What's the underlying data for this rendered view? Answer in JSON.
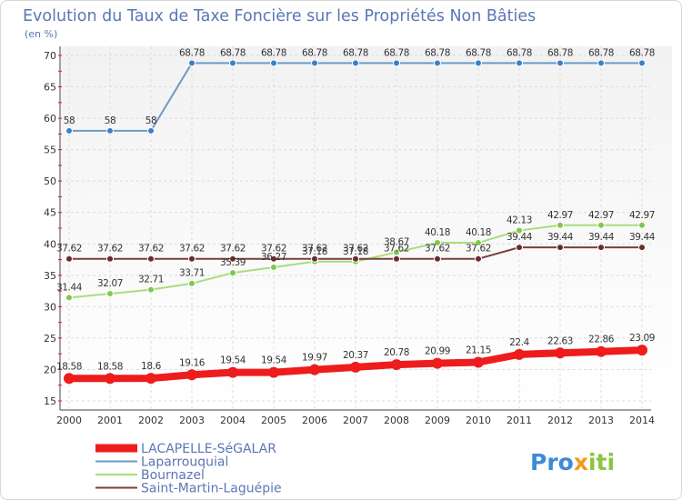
{
  "chart_data": {
    "type": "line",
    "title": "Evolution du Taux de Taxe Foncière sur les Propriétés Non Bâties",
    "subtitle": "(en %)",
    "xlabel": "",
    "ylabel": "(en %)",
    "ylim": [
      15,
      70
    ],
    "yticks": [
      "15",
      "20",
      "25",
      "30",
      "35",
      "40",
      "45",
      "50",
      "55",
      "60",
      "65",
      "70"
    ],
    "grid": true,
    "legend_position": "bottom-left",
    "categories": [
      "2000",
      "2001",
      "2002",
      "2003",
      "2004",
      "2005",
      "2006",
      "2007",
      "2008",
      "2009",
      "2010",
      "2011",
      "2012",
      "2013",
      "2014"
    ],
    "series": [
      {
        "name": "Laparrouquial",
        "color": "#6d9ac8",
        "marker_color": "#3d7fc6",
        "values": [
          58,
          58,
          58,
          68.78,
          68.78,
          68.78,
          68.78,
          68.78,
          68.78,
          68.78,
          68.78,
          68.78,
          68.78,
          68.78,
          68.78
        ],
        "labels": [
          "58",
          "58",
          "58",
          "68.78",
          "68.78",
          "68.78",
          "68.78",
          "68.78",
          "68.78",
          "68.78",
          "68.78",
          "68.78",
          "68.78",
          "68.78",
          "68.78"
        ]
      },
      {
        "name": "Bournazel",
        "color": "#a8dd7c",
        "marker_color": "#7ec84a",
        "values": [
          31.44,
          32.07,
          32.71,
          33.71,
          35.39,
          36.27,
          37.18,
          37.18,
          38.67,
          40.18,
          40.18,
          42.13,
          42.97,
          42.97,
          42.97
        ],
        "labels": [
          "31.44",
          "32.07",
          "32.71",
          "33.71",
          "35.39",
          "36.27",
          "37.18",
          "37.18",
          "38.67",
          "40.18",
          "40.18",
          "42.13",
          "42.97",
          "42.97",
          "42.97"
        ]
      },
      {
        "name": "Saint-Martin-Laguépie",
        "color": "#7a3e3e",
        "marker_color": "#6b2b2b",
        "values": [
          37.62,
          37.62,
          37.62,
          37.62,
          37.62,
          37.62,
          37.62,
          37.62,
          37.62,
          37.62,
          37.62,
          39.44,
          39.44,
          39.44,
          39.44
        ],
        "labels": [
          "37.62",
          "37.62",
          "37.62",
          "37.62",
          "37.62",
          "37.62",
          "37.62",
          "37.62",
          "37.62",
          "37.62",
          "37.62",
          "39.44",
          "39.44",
          "39.44",
          "39.44"
        ]
      },
      {
        "name": "LACAPELLE-SéGALAR",
        "color": "#ee1c1c",
        "marker_color": "#ee1c1c",
        "values": [
          18.58,
          18.58,
          18.6,
          19.16,
          19.54,
          19.54,
          19.97,
          20.37,
          20.78,
          20.99,
          21.15,
          22.4,
          22.63,
          22.86,
          23.09
        ],
        "labels": [
          "18.58",
          "18.58",
          "18.6",
          "19.16",
          "19.54",
          "19.54",
          "19.97",
          "20.37",
          "20.78",
          "20.99",
          "21.15",
          "22.4",
          "22.63",
          "22.86",
          "23.09"
        ]
      }
    ],
    "legend": [
      "LACAPELLE-SéGALAR",
      "Laparrouquial",
      "Bournazel",
      "Saint-Martin-Laguépie"
    ]
  },
  "logo": {
    "text_1": "Pro",
    "text_2": "x",
    "text_3": "iti"
  }
}
